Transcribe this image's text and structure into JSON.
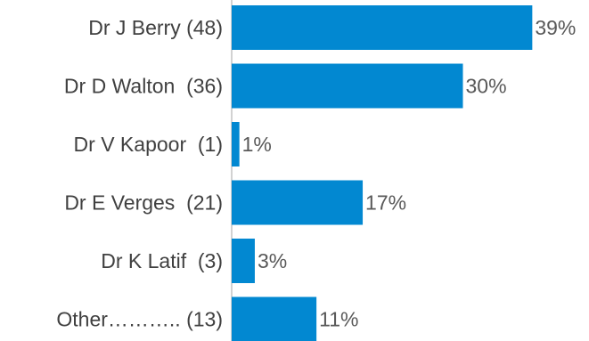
{
  "chart_data": {
    "type": "bar",
    "orientation": "horizontal",
    "categories": [
      "Dr J Berry (48)",
      "Dr D Walton  (36)",
      "Dr V Kapoor  (1)",
      "Dr E Verges  (21)",
      "Dr K Latif  (3)",
      "Other……….. (13)"
    ],
    "values": [
      39,
      30,
      1,
      17,
      3,
      11
    ],
    "value_labels": [
      "39%",
      "30%",
      "1%",
      "17%",
      "3%",
      "11%"
    ],
    "value_unit": "%",
    "bar_color": "#0288D1",
    "grid": false,
    "legend": "none"
  }
}
